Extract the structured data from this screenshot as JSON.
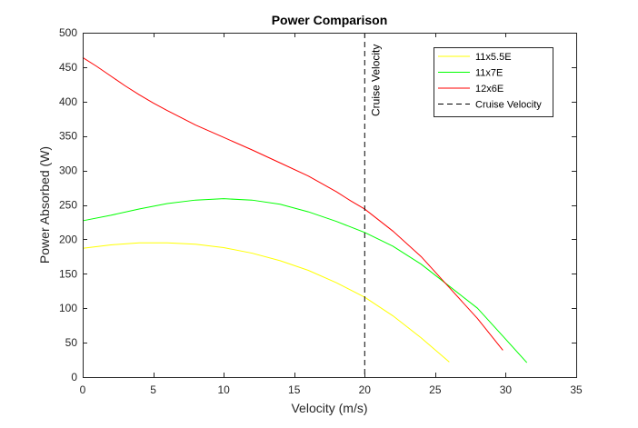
{
  "chart_data": {
    "type": "line",
    "title": "Power Comparison",
    "xlabel": "Velocity (m/s)",
    "ylabel": "Power Absorbed (W)",
    "xlim": [
      0,
      35
    ],
    "ylim": [
      0,
      500
    ],
    "xticks": [
      0,
      5,
      10,
      15,
      20,
      25,
      30,
      35
    ],
    "yticks": [
      0,
      50,
      100,
      150,
      200,
      250,
      300,
      350,
      400,
      450,
      500
    ],
    "grid": false,
    "legend_position": "top-right",
    "series": [
      {
        "name": "11x5.5E",
        "color": "#ffff00",
        "x": [
          0,
          2,
          4,
          6,
          8,
          10,
          12,
          14,
          16,
          18,
          20,
          22,
          24,
          26
        ],
        "y": [
          187,
          192,
          195,
          195,
          193,
          188,
          180,
          169,
          155,
          137,
          116,
          89,
          57,
          22
        ]
      },
      {
        "name": "11x7E",
        "color": "#00ff00",
        "x": [
          0,
          2,
          4,
          6,
          8,
          10,
          12,
          14,
          16,
          18,
          20,
          22,
          24,
          26,
          28,
          30,
          31.5
        ],
        "y": [
          227,
          235,
          244,
          252,
          257,
          259,
          257,
          251,
          240,
          226,
          210,
          190,
          164,
          132,
          100,
          55,
          21
        ]
      },
      {
        "name": "12x6E",
        "color": "#ff0000",
        "x": [
          0,
          1,
          2,
          3,
          4,
          5,
          6,
          8,
          10,
          12,
          14,
          16,
          18,
          19,
          20,
          22,
          24,
          26,
          28,
          29.8
        ],
        "y": [
          464,
          451,
          437,
          423,
          410,
          398,
          387,
          366,
          348,
          330,
          311,
          292,
          269,
          256,
          244,
          212,
          175,
          130,
          85,
          39
        ]
      }
    ],
    "reference_lines": [
      {
        "name": "Cruise Velocity",
        "axis": "x",
        "value": 20,
        "color": "#000000",
        "style": "dashed",
        "annotation": "Cruise Velocity"
      }
    ]
  }
}
